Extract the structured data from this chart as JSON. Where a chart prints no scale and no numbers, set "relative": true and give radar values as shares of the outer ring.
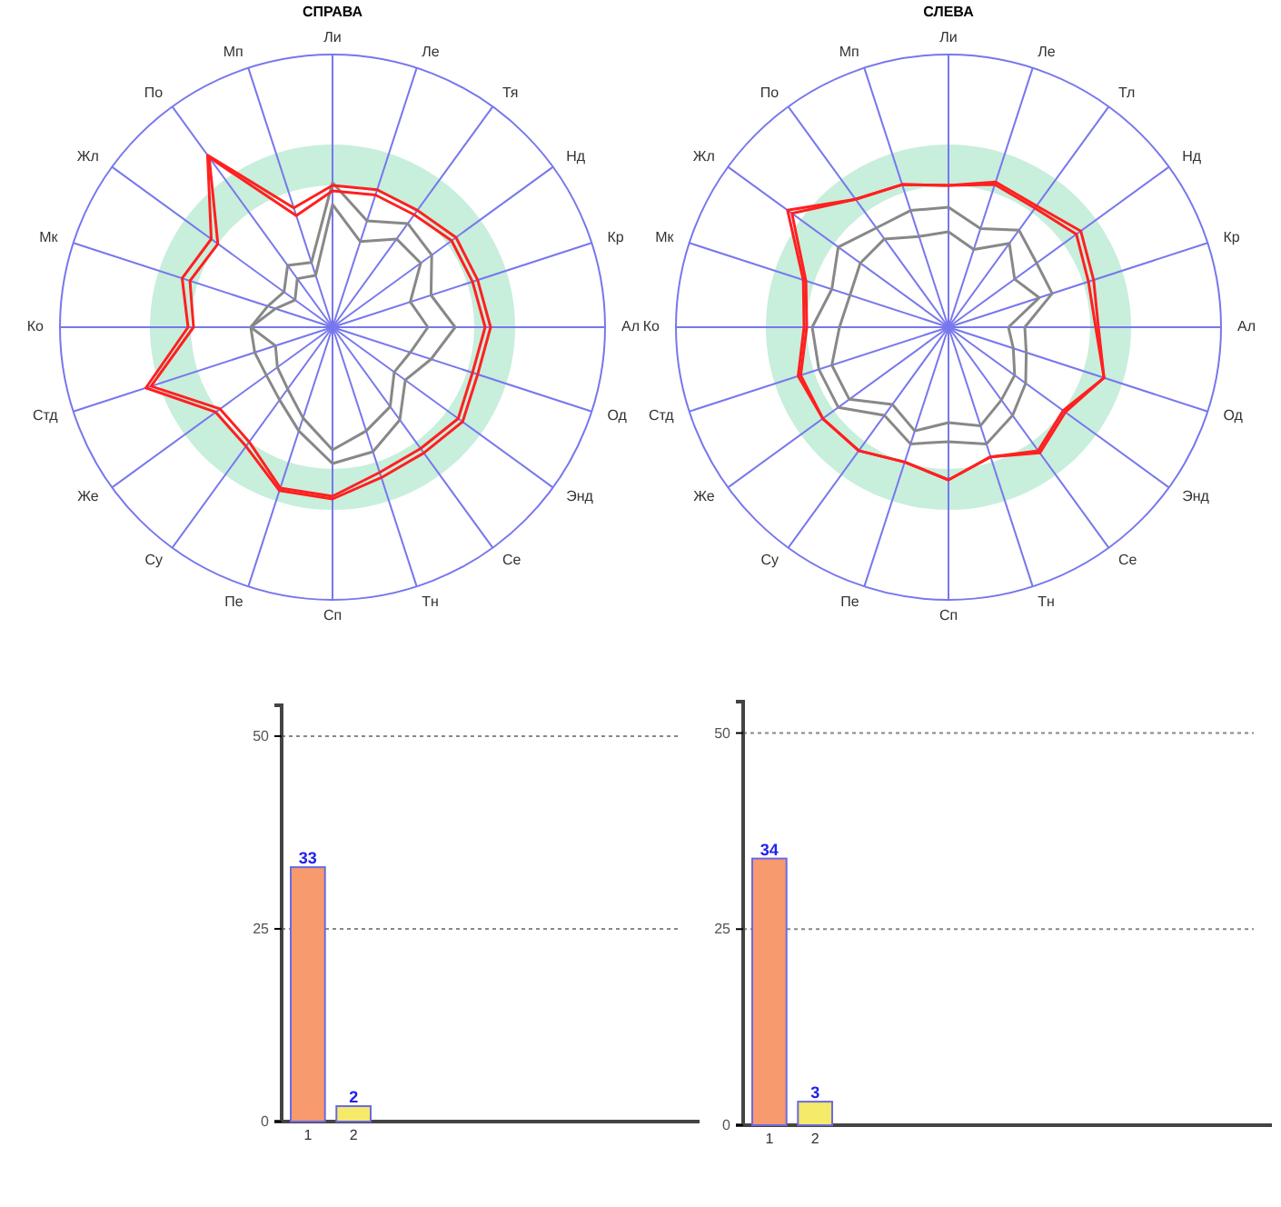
{
  "chart_data": [
    {
      "type": "radar",
      "title": "СПРАВА",
      "relative": true,
      "grid": true,
      "categories": [
        "Ли",
        "Ле",
        "Тя",
        "Нд",
        "Кр",
        "Ал",
        "Од",
        "Энд",
        "Се",
        "Тн",
        "Сп",
        "Пе",
        "Су",
        "Же",
        "Стд",
        "Ко",
        "Мк",
        "Жл",
        "По",
        "Мп"
      ],
      "series": [
        {
          "color": "#888888",
          "values": [
            0.45,
            0.33,
            0.4,
            0.4,
            0.3,
            0.35,
            0.3,
            0.28,
            0.36,
            0.4,
            0.45,
            0.35,
            0.28,
            0.25,
            0.22,
            0.3,
            0.22,
            0.17,
            0.22,
            0.2
          ]
        },
        {
          "color": "#888888",
          "values": [
            0.53,
            0.41,
            0.47,
            0.45,
            0.38,
            0.45,
            0.38,
            0.33,
            0.42,
            0.48,
            0.5,
            0.4,
            0.33,
            0.3,
            0.3,
            0.3,
            0.25,
            0.22,
            0.28,
            0.25
          ]
        },
        {
          "color": "#ff2020",
          "values": [
            0.5,
            0.51,
            0.51,
            0.54,
            0.54,
            0.56,
            0.54,
            0.57,
            0.55,
            0.56,
            0.62,
            0.62,
            0.52,
            0.51,
            0.7,
            0.51,
            0.55,
            0.52,
            0.77,
            0.43
          ]
        },
        {
          "color": "#ff2020",
          "values": [
            0.52,
            0.53,
            0.53,
            0.56,
            0.56,
            0.58,
            0.56,
            0.59,
            0.57,
            0.58,
            0.63,
            0.63,
            0.54,
            0.53,
            0.72,
            0.53,
            0.58,
            0.55,
            0.78,
            0.46
          ]
        }
      ]
    },
    {
      "type": "radar",
      "title": "СЛЕВА",
      "relative": true,
      "grid": true,
      "categories": [
        "Ли",
        "Ле",
        "Тл",
        "Нд",
        "Кр",
        "Ал",
        "Од",
        "Энд",
        "Се",
        "Тн",
        "Сп",
        "Пе",
        "Су",
        "Же",
        "Стд",
        "Ко",
        "Мк",
        "Жл",
        "По",
        "Мп"
      ],
      "series": [
        {
          "color": "#888888",
          "values": [
            0.35,
            0.3,
            0.38,
            0.3,
            0.35,
            0.22,
            0.25,
            0.3,
            0.33,
            0.38,
            0.35,
            0.4,
            0.35,
            0.45,
            0.45,
            0.4,
            0.38,
            0.4,
            0.4,
            0.35
          ]
        },
        {
          "color": "#888888",
          "values": [
            0.44,
            0.38,
            0.44,
            0.4,
            0.4,
            0.28,
            0.3,
            0.35,
            0.4,
            0.45,
            0.42,
            0.45,
            0.4,
            0.5,
            0.5,
            0.5,
            0.45,
            0.5,
            0.45,
            0.45
          ]
        },
        {
          "color": "#ff2020",
          "values": [
            0.52,
            0.55,
            0.54,
            0.58,
            0.54,
            0.54,
            0.6,
            0.52,
            0.56,
            0.5,
            0.56,
            0.52,
            0.56,
            0.57,
            0.57,
            0.52,
            0.55,
            0.71,
            0.58,
            0.55
          ]
        },
        {
          "color": "#ff2020",
          "values": [
            0.52,
            0.56,
            0.55,
            0.6,
            0.56,
            0.55,
            0.6,
            0.53,
            0.57,
            0.5,
            0.56,
            0.52,
            0.56,
            0.57,
            0.58,
            0.53,
            0.56,
            0.73,
            0.58,
            0.55
          ]
        }
      ]
    },
    {
      "type": "bar",
      "categories": [
        "1",
        "2"
      ],
      "values": [
        33,
        2
      ],
      "colors": [
        "#f79a6e",
        "#f5ea6a"
      ],
      "ylim": [
        0,
        54
      ],
      "yticks": [
        0,
        25,
        50
      ],
      "grid": "y",
      "data_labels": true
    },
    {
      "type": "bar",
      "categories": [
        "1",
        "2"
      ],
      "values": [
        34,
        3
      ],
      "colors": [
        "#f79a6e",
        "#f5ea6a"
      ],
      "ylim": [
        0,
        54
      ],
      "yticks": [
        0,
        25,
        50
      ],
      "grid": "y",
      "data_labels": true
    }
  ]
}
